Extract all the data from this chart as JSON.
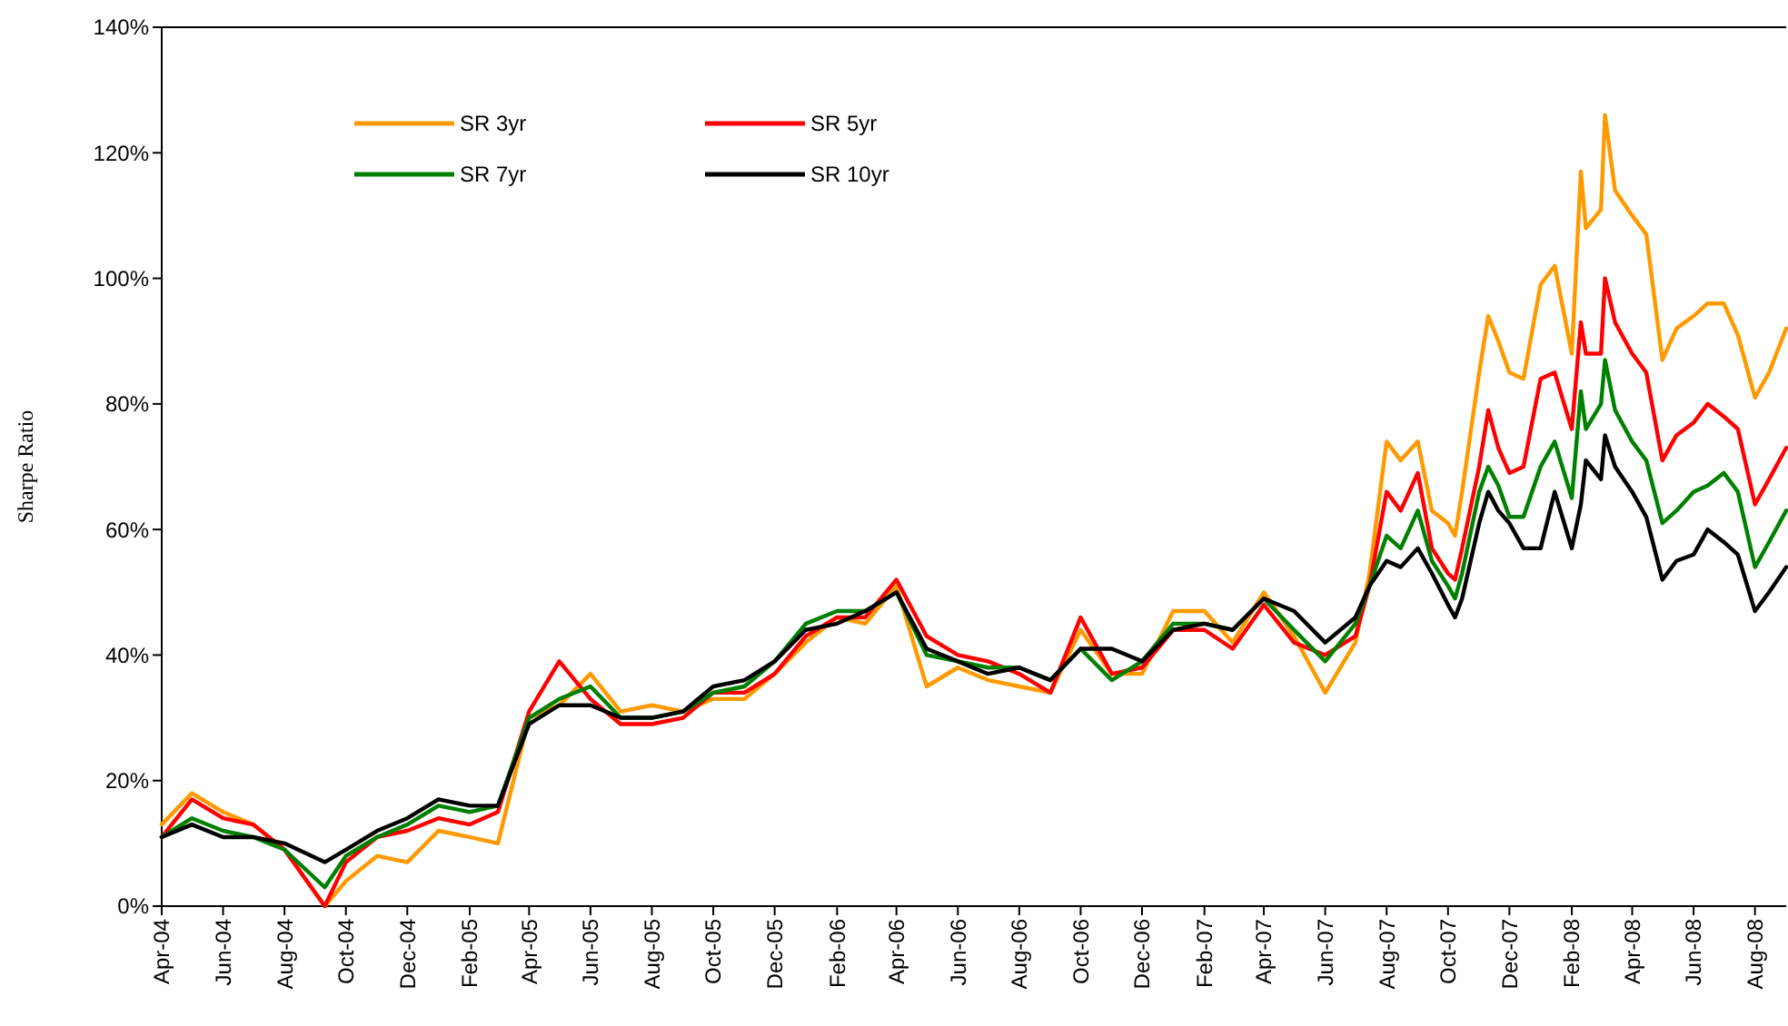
{
  "chart_data": {
    "type": "line",
    "ylabel": "Sharpe Ratio",
    "legend": "top left",
    "line_style": "solid",
    "marker": "none",
    "grid": false,
    "x": [
      "2004-04-01",
      "2004-05-01",
      "2004-06-01",
      "2004-07-01",
      "2004-08-01",
      "2004-09-10",
      "2004-10-01",
      "2004-11-01",
      "2004-12-01",
      "2005-01-01",
      "2005-02-01",
      "2005-03-01",
      "2005-04-01",
      "2005-05-01",
      "2005-06-01",
      "2005-07-01",
      "2005-08-01",
      "2005-09-01",
      "2005-10-01",
      "2005-11-01",
      "2005-12-01",
      "2006-01-01",
      "2006-02-01",
      "2006-03-01",
      "2006-04-01",
      "2006-05-01",
      "2006-06-01",
      "2006-07-01",
      "2006-08-01",
      "2006-09-01",
      "2006-10-01",
      "2006-11-01",
      "2006-12-01",
      "2007-01-01",
      "2007-02-01",
      "2007-03-01",
      "2007-04-01",
      "2007-05-01",
      "2007-06-01",
      "2007-07-01",
      "2007-07-15",
      "2007-08-01",
      "2007-08-15",
      "2007-09-01",
      "2007-09-15",
      "2007-10-01",
      "2007-10-08",
      "2007-10-15",
      "2007-11-01",
      "2007-11-10",
      "2007-11-20",
      "2007-12-01",
      "2007-12-15",
      "2008-01-01",
      "2008-01-15",
      "2008-02-01",
      "2008-02-10",
      "2008-02-15",
      "2008-03-01",
      "2008-03-05",
      "2008-03-15",
      "2008-04-01",
      "2008-04-15",
      "2008-05-01",
      "2008-05-15",
      "2008-06-01",
      "2008-06-15",
      "2008-07-01",
      "2008-07-15",
      "2008-08-01",
      "2008-08-15",
      "2008-09-01"
    ],
    "xlim": [
      "2004-04-01",
      "2008-09-01"
    ],
    "xticks": [
      {
        "value": "2004-04-01",
        "label": "Apr-04"
      },
      {
        "value": "2004-06-01",
        "label": "Jun-04"
      },
      {
        "value": "2004-08-01",
        "label": "Aug-04"
      },
      {
        "value": "2004-10-01",
        "label": "Oct-04"
      },
      {
        "value": "2004-12-01",
        "label": "Dec-04"
      },
      {
        "value": "2005-02-01",
        "label": "Feb-05"
      },
      {
        "value": "2005-04-01",
        "label": "Apr-05"
      },
      {
        "value": "2005-06-01",
        "label": "Jun-05"
      },
      {
        "value": "2005-08-01",
        "label": "Aug-05"
      },
      {
        "value": "2005-10-01",
        "label": "Oct-05"
      },
      {
        "value": "2005-12-01",
        "label": "Dec-05"
      },
      {
        "value": "2006-02-01",
        "label": "Feb-06"
      },
      {
        "value": "2006-04-01",
        "label": "Apr-06"
      },
      {
        "value": "2006-06-01",
        "label": "Jun-06"
      },
      {
        "value": "2006-08-01",
        "label": "Aug-06"
      },
      {
        "value": "2006-10-01",
        "label": "Oct-06"
      },
      {
        "value": "2006-12-01",
        "label": "Dec-06"
      },
      {
        "value": "2007-02-01",
        "label": "Feb-07"
      },
      {
        "value": "2007-04-01",
        "label": "Apr-07"
      },
      {
        "value": "2007-06-01",
        "label": "Jun-07"
      },
      {
        "value": "2007-08-01",
        "label": "Aug-07"
      },
      {
        "value": "2007-10-01",
        "label": "Oct-07"
      },
      {
        "value": "2007-12-01",
        "label": "Dec-07"
      },
      {
        "value": "2008-02-01",
        "label": "Feb-08"
      },
      {
        "value": "2008-04-01",
        "label": "Apr-08"
      },
      {
        "value": "2008-06-01",
        "label": "Jun-08"
      },
      {
        "value": "2008-08-01",
        "label": "Aug-08"
      }
    ],
    "ylim": [
      0,
      140
    ],
    "yticks": [
      {
        "value": 0,
        "label": "0%"
      },
      {
        "value": 20,
        "label": "20%"
      },
      {
        "value": 40,
        "label": "40%"
      },
      {
        "value": 60,
        "label": "60%"
      },
      {
        "value": 80,
        "label": "80%"
      },
      {
        "value": 100,
        "label": "100%"
      },
      {
        "value": 120,
        "label": "120%"
      },
      {
        "value": 140,
        "label": "140%"
      }
    ],
    "series": [
      {
        "name": "SR 3yr",
        "color": "#ff9900",
        "values": [
          13,
          18,
          15,
          13,
          9,
          0,
          4,
          8,
          7,
          12,
          11,
          10,
          30,
          32,
          37,
          31,
          32,
          31,
          33,
          33,
          37,
          42,
          46,
          45,
          51,
          35,
          38,
          36,
          35,
          34,
          44,
          37,
          37,
          47,
          47,
          42,
          50,
          43,
          34,
          42,
          53,
          74,
          71,
          74,
          63,
          61,
          59,
          66,
          85,
          94,
          90,
          85,
          84,
          99,
          102,
          88,
          117,
          108,
          111,
          126,
          114,
          110,
          107,
          87,
          92,
          94,
          96,
          96,
          91,
          81,
          85,
          92
        ]
      },
      {
        "name": "SR 5yr",
        "color": "#ff0000",
        "values": [
          11,
          17,
          14,
          13,
          9,
          0,
          7,
          11,
          12,
          14,
          13,
          15,
          31,
          39,
          33,
          29,
          29,
          30,
          34,
          34,
          37,
          43,
          46,
          46,
          52,
          43,
          40,
          39,
          37,
          34,
          46,
          37,
          38,
          44,
          44,
          41,
          48,
          42,
          40,
          43,
          51,
          66,
          63,
          69,
          57,
          53,
          52,
          57,
          70,
          79,
          73,
          69,
          70,
          84,
          85,
          76,
          93,
          88,
          88,
          100,
          93,
          88,
          85,
          71,
          75,
          77,
          80,
          78,
          76,
          64,
          68,
          73
        ]
      },
      {
        "name": "SR 7yr",
        "color": "#008000",
        "values": [
          11,
          14,
          12,
          11,
          9,
          3,
          8,
          11,
          13,
          16,
          15,
          16,
          30,
          33,
          35,
          30,
          30,
          31,
          34,
          35,
          39,
          45,
          47,
          47,
          50,
          40,
          39,
          38,
          38,
          36,
          41,
          36,
          39,
          45,
          45,
          44,
          49,
          44,
          39,
          45,
          51,
          59,
          57,
          63,
          55,
          51,
          49,
          53,
          66,
          70,
          67,
          62,
          62,
          70,
          74,
          65,
          82,
          76,
          80,
          87,
          79,
          74,
          71,
          61,
          63,
          66,
          67,
          69,
          66,
          54,
          58,
          63
        ]
      },
      {
        "name": "SR 10yr",
        "color": "#000000",
        "values": [
          11,
          13,
          11,
          11,
          10,
          7,
          9,
          12,
          14,
          17,
          16,
          16,
          29,
          32,
          32,
          30,
          30,
          31,
          35,
          36,
          39,
          44,
          45,
          47,
          50,
          41,
          39,
          37,
          38,
          36,
          41,
          41,
          39,
          44,
          45,
          44,
          49,
          47,
          42,
          46,
          51,
          55,
          54,
          57,
          53,
          48,
          46,
          49,
          61,
          66,
          63,
          61,
          57,
          57,
          66,
          57,
          64,
          71,
          68,
          75,
          70,
          66,
          62,
          52,
          55,
          56,
          60,
          58,
          56,
          47,
          50,
          54
        ]
      }
    ]
  }
}
